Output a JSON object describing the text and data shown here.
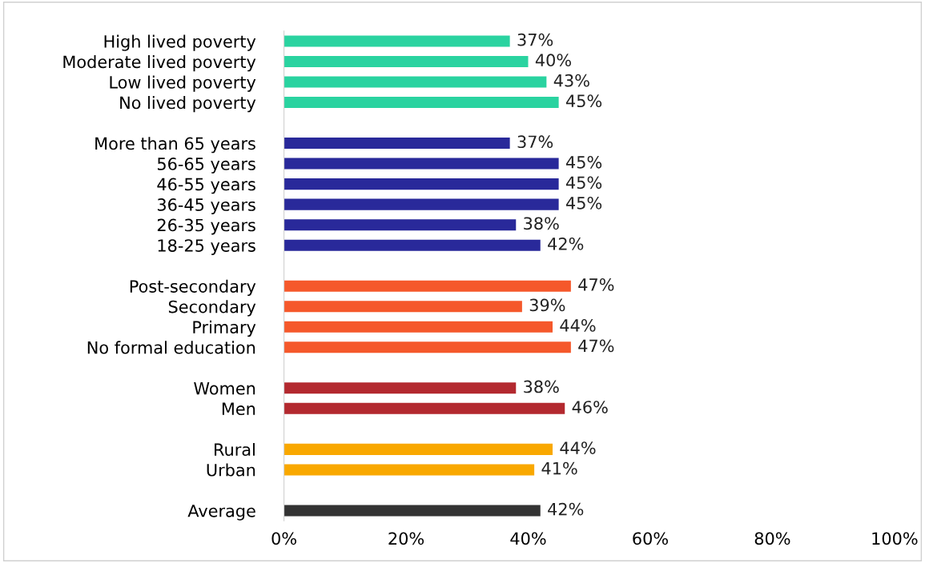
{
  "chart_data": {
    "type": "bar",
    "orientation": "horizontal",
    "categories": [
      "High lived poverty",
      "Moderate lived poverty",
      "Low lived poverty",
      "No lived poverty",
      null,
      "More than 65 years",
      "56-65 years",
      "46-55 years",
      "36-45 years",
      "26-35 years",
      "18-25 years",
      null,
      "Post-secondary",
      "Secondary",
      "Primary",
      "No formal education",
      null,
      "Women",
      "Men",
      null,
      "Rural",
      "Urban",
      null,
      "Average"
    ],
    "values": [
      37,
      40,
      43,
      45,
      null,
      37,
      45,
      45,
      45,
      38,
      42,
      null,
      47,
      39,
      44,
      47,
      null,
      38,
      46,
      null,
      44,
      41,
      null,
      42
    ],
    "value_labels": [
      "37%",
      "40%",
      "43%",
      "45%",
      null,
      "37%",
      "45%",
      "45%",
      "45%",
      "38%",
      "42%",
      null,
      "47%",
      "39%",
      "44%",
      "47%",
      null,
      "38%",
      "46%",
      null,
      "44%",
      "41%",
      null,
      "42%"
    ],
    "colors": [
      "#2ad3a0",
      "#2ad3a0",
      "#2ad3a0",
      "#2ad3a0",
      null,
      "#29299a",
      "#29299a",
      "#29299a",
      "#29299a",
      "#29299a",
      "#29299a",
      null,
      "#f5582b",
      "#f5582b",
      "#f5582b",
      "#f5582b",
      null,
      "#b3292f",
      "#b3292f",
      null,
      "#f9a800",
      "#f9a800",
      null,
      "#333333"
    ],
    "xlim": [
      0,
      100
    ],
    "xticks": [
      {
        "value": 0,
        "label": "0%"
      },
      {
        "value": 20,
        "label": "20%"
      },
      {
        "value": 40,
        "label": "40%"
      },
      {
        "value": 60,
        "label": "60%"
      },
      {
        "value": 80,
        "label": "80%"
      },
      {
        "value": 100,
        "label": "100%"
      }
    ],
    "grid": false,
    "legend": false
  }
}
